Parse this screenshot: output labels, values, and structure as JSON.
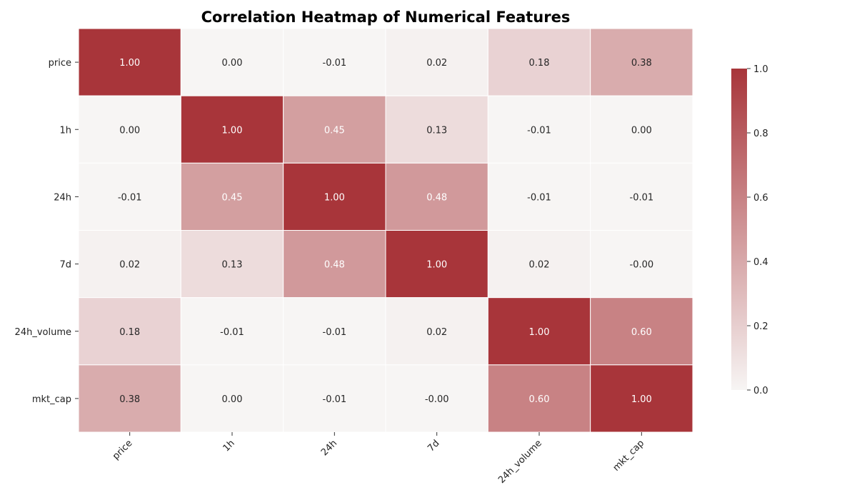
{
  "chart_data": {
    "type": "heatmap",
    "title": "Correlation Heatmap of Numerical Features",
    "xlabel": "",
    "ylabel": "",
    "x_labels": [
      "price",
      "1h",
      "24h",
      "7d",
      "24h_volume",
      "mkt_cap"
    ],
    "y_labels": [
      "price",
      "1h",
      "24h",
      "7d",
      "24h_volume",
      "mkt_cap"
    ],
    "values": [
      [
        1.0,
        0.0,
        -0.01,
        0.02,
        0.18,
        0.38
      ],
      [
        0.0,
        1.0,
        0.45,
        0.13,
        -0.01,
        0.0
      ],
      [
        -0.01,
        0.45,
        1.0,
        0.48,
        -0.01,
        -0.01
      ],
      [
        0.02,
        0.13,
        0.48,
        1.0,
        0.02,
        -0.0
      ],
      [
        0.18,
        -0.01,
        -0.01,
        0.02,
        1.0,
        0.6
      ],
      [
        0.38,
        0.0,
        -0.01,
        -0.0,
        0.6,
        1.0
      ]
    ],
    "cell_labels": [
      [
        "1.00",
        "0.00",
        "-0.01",
        "0.02",
        "0.18",
        "0.38"
      ],
      [
        "0.00",
        "1.00",
        "0.45",
        "0.13",
        "-0.01",
        "0.00"
      ],
      [
        "-0.01",
        "0.45",
        "1.00",
        "0.48",
        "-0.01",
        "-0.01"
      ],
      [
        "0.02",
        "0.13",
        "0.48",
        "1.00",
        "0.02",
        "-0.00"
      ],
      [
        "0.18",
        "-0.01",
        "-0.01",
        "0.02",
        "1.00",
        "0.60"
      ],
      [
        "0.38",
        "0.00",
        "-0.01",
        "-0.00",
        "0.60",
        "1.00"
      ]
    ],
    "colorbar": {
      "range": [
        0.0,
        1.0
      ],
      "ticks": [
        "0.0",
        "0.2",
        "0.4",
        "0.6",
        "0.8",
        "1.0"
      ]
    },
    "colors": {
      "low": "#f7f5f4",
      "high": "#a8353a"
    },
    "grid": true
  }
}
